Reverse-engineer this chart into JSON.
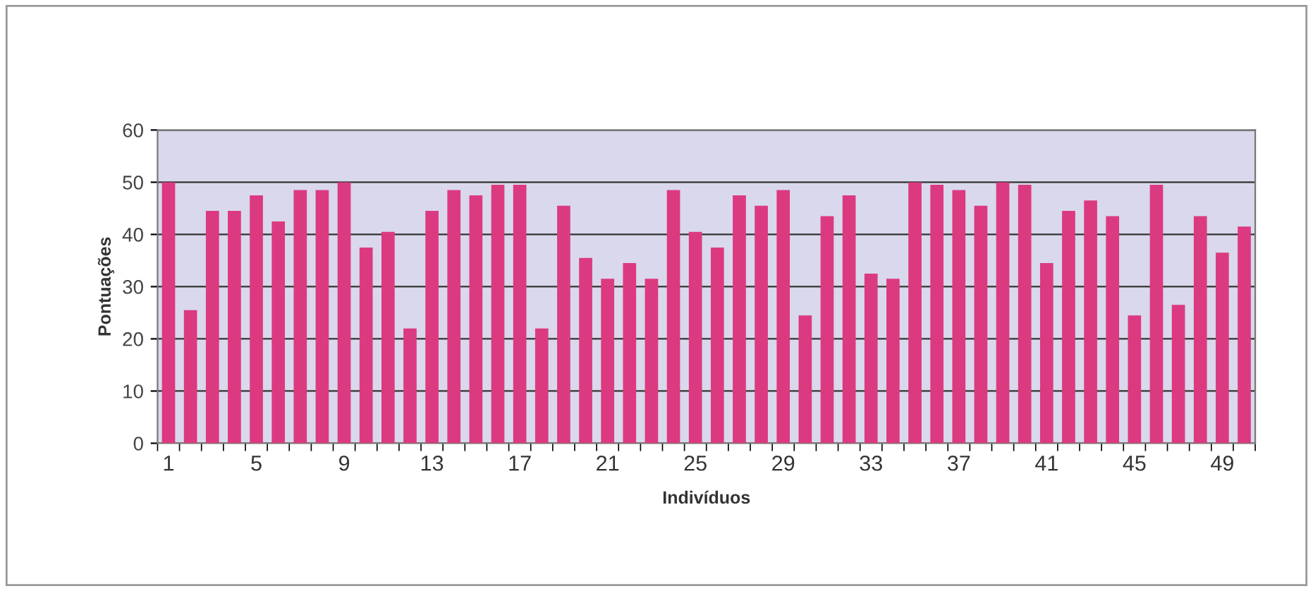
{
  "chart_data": {
    "type": "bar",
    "categories": [
      "1",
      null,
      null,
      null,
      "5",
      null,
      null,
      null,
      "9",
      null,
      null,
      null,
      "13",
      null,
      null,
      null,
      "17",
      null,
      null,
      null,
      "21",
      null,
      null,
      null,
      "25",
      null,
      null,
      null,
      "29",
      null,
      null,
      null,
      "33",
      null,
      null,
      null,
      "37",
      null,
      null,
      null,
      "41",
      null,
      null,
      null,
      "45",
      null,
      null,
      null,
      "49",
      null
    ],
    "values": [
      50,
      25.5,
      44.5,
      44.5,
      47.5,
      42.5,
      48.5,
      48.5,
      50,
      37.5,
      40.5,
      22,
      44.5,
      48.5,
      47.5,
      49.5,
      49.5,
      22,
      45.5,
      35.5,
      31.5,
      34.5,
      31.5,
      48.5,
      40.5,
      37.5,
      47.5,
      45.5,
      48.5,
      24.5,
      43.5,
      47.5,
      32.5,
      31.5,
      50,
      49.5,
      48.5,
      45.5,
      50,
      49.5,
      34.5,
      44.5,
      46.5,
      43.5,
      24.5,
      49.5,
      26.5,
      43.5,
      36.5,
      41.5
    ],
    "color": "#dc3a80",
    "xlabel": "Indivíduos",
    "ylabel": "Pontuações",
    "ylim": [
      0,
      60
    ],
    "yticks": [
      0,
      10,
      20,
      30,
      40,
      50,
      60
    ],
    "grid": "y"
  }
}
